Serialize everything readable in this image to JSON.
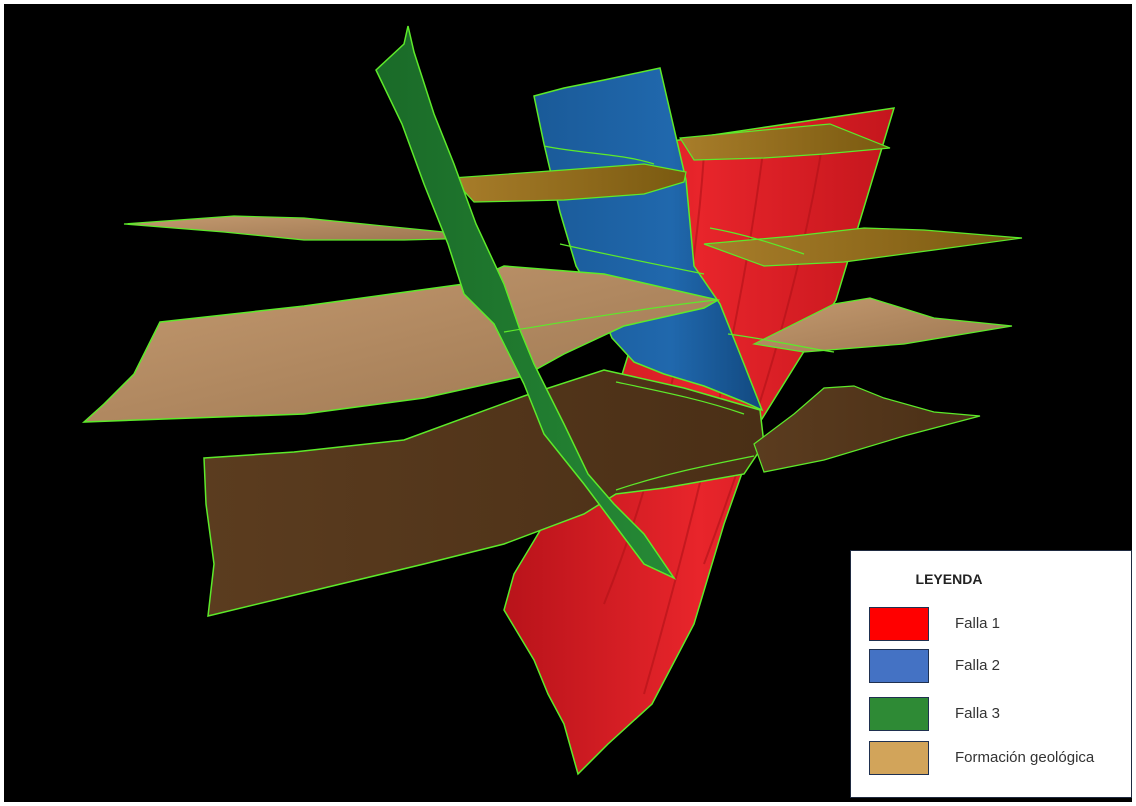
{
  "colors": {
    "background": "#000000",
    "outline": "#5dea2a",
    "falla_1": "#e01e24",
    "falla_2": "#1c5fa0",
    "falla_3": "#1f7a2e",
    "formacion_light": "#b08a62",
    "formacion_dark": "#5a3b1e",
    "formacion_olive": "#8f6a12"
  },
  "legend": {
    "title": "LEYENDA",
    "items": [
      {
        "label": "Falla 1",
        "color": "#ff0000"
      },
      {
        "label": "Falla 2",
        "color": "#4472c4"
      },
      {
        "label": "Falla 3",
        "color": "#2e8a35"
      },
      {
        "label": "Formación geológica",
        "color": "#d2a45a"
      }
    ]
  }
}
